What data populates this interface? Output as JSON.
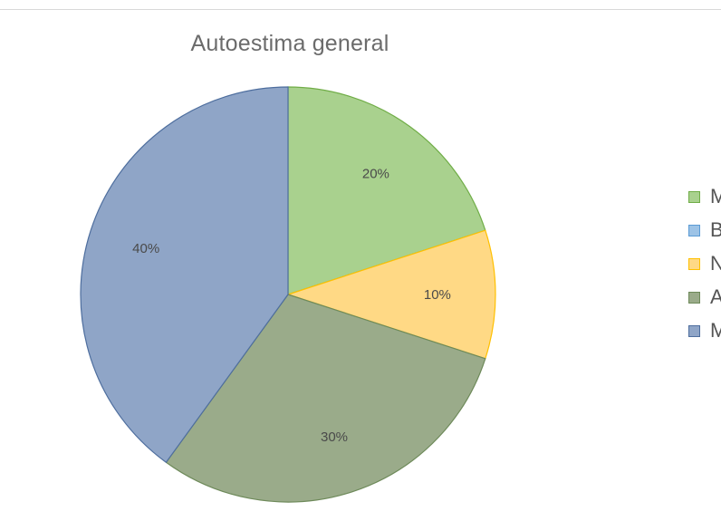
{
  "chart_data": {
    "type": "pie",
    "title": "Autoestima general",
    "slices": [
      {
        "name": "M",
        "value": 20,
        "label": "20%",
        "color": "#a9d18e",
        "border": "#70ad47"
      },
      {
        "name": "N",
        "value": 10,
        "label": "10%",
        "color": "#ffd985",
        "border": "#ffc000"
      },
      {
        "name": "A",
        "value": 30,
        "label": "30%",
        "color": "#9aab8a",
        "border": "#6e8a5a"
      },
      {
        "name": "M",
        "value": 40,
        "label": "40%",
        "color": "#8fa5c7",
        "border": "#4e6e9e"
      }
    ],
    "legend": {
      "position": "right",
      "entries": [
        {
          "label": "M",
          "color": "#a9d18e",
          "border": "#70ad47"
        },
        {
          "label": "B",
          "color": "#9dc3e6",
          "border": "#5b9bd5"
        },
        {
          "label": "N",
          "color": "#ffd985",
          "border": "#ffc000"
        },
        {
          "label": "A",
          "color": "#9aab8a",
          "border": "#6e8a5a"
        },
        {
          "label": "M",
          "color": "#8fa5c7",
          "border": "#4e6e9e"
        }
      ]
    }
  }
}
